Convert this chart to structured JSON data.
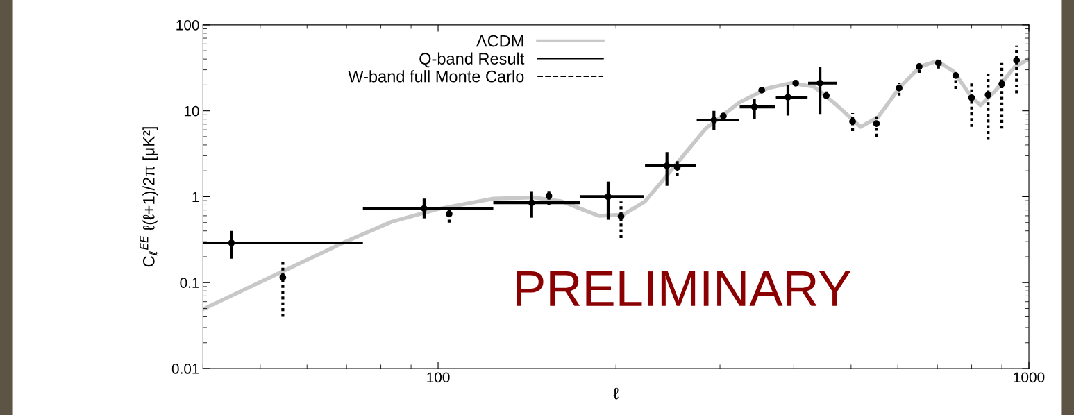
{
  "chart_data": {
    "type": "scatter",
    "xlabel": "ℓ",
    "ylabel": "C$_{ℓ}$$^{EE}$ ℓ(ℓ+1)/2π [μK²]",
    "log": "xy",
    "xlim": [
      40,
      1000
    ],
    "ylim": [
      0.01,
      100
    ],
    "xticks": [
      100,
      1000
    ],
    "yticks": [
      {
        "value": 0.01,
        "label": "0.01"
      },
      {
        "value": 0.1,
        "label": "0.1"
      },
      1,
      10,
      100
    ],
    "grid": false,
    "legend": "top",
    "marker": "circle",
    "series": [
      {
        "name": "ΛCDM",
        "type": "line",
        "color": "#c8c8c8",
        "line_style": "solid",
        "marker": "none",
        "x": [
          40,
          54.6,
          69.7,
          83.4,
          100,
          124,
          145,
          162,
          187,
          206,
          224,
          241,
          261,
          284,
          323,
          362,
          396,
          433,
          473,
          519,
          555,
          606,
          655,
          700,
          746,
          800,
          828,
          875,
          947,
          996
        ],
        "values": [
          0.049,
          0.135,
          0.3,
          0.51,
          0.72,
          0.95,
          0.98,
          0.88,
          0.6,
          0.62,
          0.88,
          1.6,
          3.1,
          6.25,
          12.4,
          18.4,
          21,
          19.1,
          11.6,
          6.5,
          8.4,
          19.1,
          32.7,
          38,
          28.7,
          14.4,
          11.6,
          16.7,
          32.7,
          39.5
        ]
      },
      {
        "name": "Q-band Result",
        "type": "scatter",
        "color": "#000000",
        "line_style": "solid",
        "x": [
          44.7,
          94.7,
          144,
          194,
          244,
          293,
          343,
          391,
          443
        ],
        "values": [
          0.29,
          0.73,
          0.85,
          1.0,
          2.29,
          7.8,
          11.1,
          14.4,
          21
        ],
        "errors": [
          [
            0.19,
            0.4
          ],
          [
            0.56,
            0.95
          ],
          [
            0.57,
            1.16
          ],
          [
            0.54,
            1.5
          ],
          [
            1.34,
            3.3
          ],
          [
            6,
            10
          ],
          [
            8,
            13.9
          ],
          [
            8.8,
            19.8
          ],
          [
            9.2,
            32.7
          ]
        ],
        "xerrors": [
          [
            40,
            74.6
          ],
          [
            74.6,
            124
          ],
          [
            124,
            174
          ],
          [
            174,
            223
          ],
          [
            224,
            273
          ],
          [
            274,
            323
          ],
          [
            324,
            372
          ],
          [
            373,
            422
          ],
          [
            423,
            473
          ]
        ]
      },
      {
        "name": "W-band full Monte Carlo",
        "type": "scatter",
        "color": "#000000",
        "line_style": "dotted",
        "x": [
          54.6,
          104.4,
          154,
          204,
          254,
          304,
          353,
          403,
          454,
          503,
          552,
          603,
          652,
          703,
          752,
          800,
          853,
          900,
          953
        ],
        "values": [
          0.115,
          0.63,
          1.02,
          0.59,
          2.2,
          8.7,
          17.4,
          21,
          15,
          7.5,
          7.1,
          18.4,
          32.7,
          36,
          25.7,
          14.2,
          15.3,
          20.6,
          38.7
        ],
        "errors": [
          [
            0.04,
            0.18
          ],
          [
            0.5,
            0.74
          ],
          [
            0.79,
            1.21
          ],
          [
            0.33,
            0.88
          ],
          [
            1.76,
            2.67
          ],
          [
            7.8,
            9.4
          ],
          [
            16.8,
            18.5
          ],
          [
            19.4,
            22.2
          ],
          [
            13.7,
            16.8
          ],
          [
            5.8,
            9.4
          ],
          [
            5.0,
            9.1
          ],
          [
            15,
            21
          ],
          [
            27.7,
            37.3
          ],
          [
            31,
            41.7
          ],
          [
            18,
            25.7
          ],
          [
            6.5,
            22.5
          ],
          [
            4.6,
            26.6
          ],
          [
            6.2,
            36
          ],
          [
            16,
            57.3
          ]
        ]
      }
    ],
    "annotations": [
      "PRELIMINARY"
    ]
  }
}
